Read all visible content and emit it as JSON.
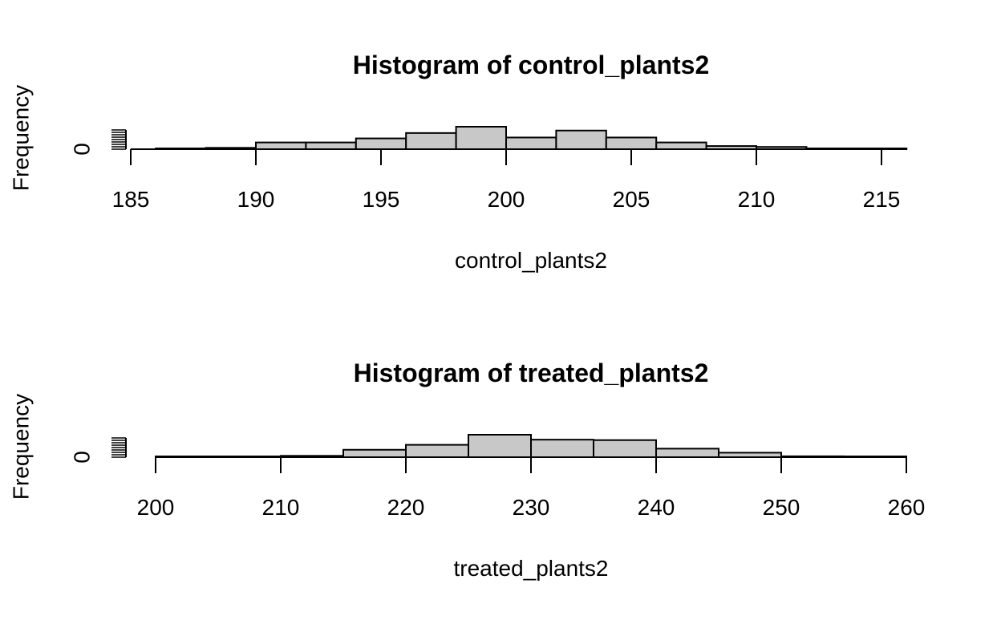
{
  "chart_data": [
    {
      "type": "bar",
      "subtype": "histogram",
      "title": "Histogram of control_plants2",
      "xlabel": "control_plants2",
      "ylabel": "Frequency",
      "xlim": [
        185,
        215
      ],
      "xticks": [
        185,
        190,
        195,
        200,
        205,
        210,
        215
      ],
      "xtick_labels": [
        "185",
        "190",
        "195",
        "200",
        "205",
        "210",
        "215"
      ],
      "ytick_labels": [
        "0"
      ],
      "bin_edges": [
        186,
        188,
        190,
        192,
        194,
        196,
        198,
        200,
        202,
        204,
        206,
        208,
        210,
        212,
        214,
        216
      ],
      "values": [
        0.03,
        0.06,
        0.3,
        0.3,
        0.48,
        0.72,
        1.0,
        0.52,
        0.83,
        0.52,
        0.3,
        0.14,
        0.1,
        0.03,
        0.02
      ],
      "bar_color": "#c8c8c8",
      "grid": false
    },
    {
      "type": "bar",
      "subtype": "histogram",
      "title": "Histogram of treated_plants2",
      "xlabel": "treated_plants2",
      "ylabel": "Frequency",
      "xlim": [
        200,
        260
      ],
      "xticks": [
        200,
        210,
        220,
        230,
        240,
        250,
        260
      ],
      "xtick_labels": [
        "200",
        "210",
        "220",
        "230",
        "240",
        "250",
        "260"
      ],
      "ytick_labels": [
        "0"
      ],
      "bin_edges": [
        200,
        205,
        210,
        215,
        220,
        225,
        230,
        235,
        240,
        245,
        250,
        255,
        260
      ],
      "values": [
        0.02,
        0.02,
        0.06,
        0.33,
        0.55,
        1.0,
        0.78,
        0.76,
        0.38,
        0.2,
        0.04,
        0.02
      ],
      "bar_color": "#c8c8c8",
      "grid": false
    }
  ]
}
